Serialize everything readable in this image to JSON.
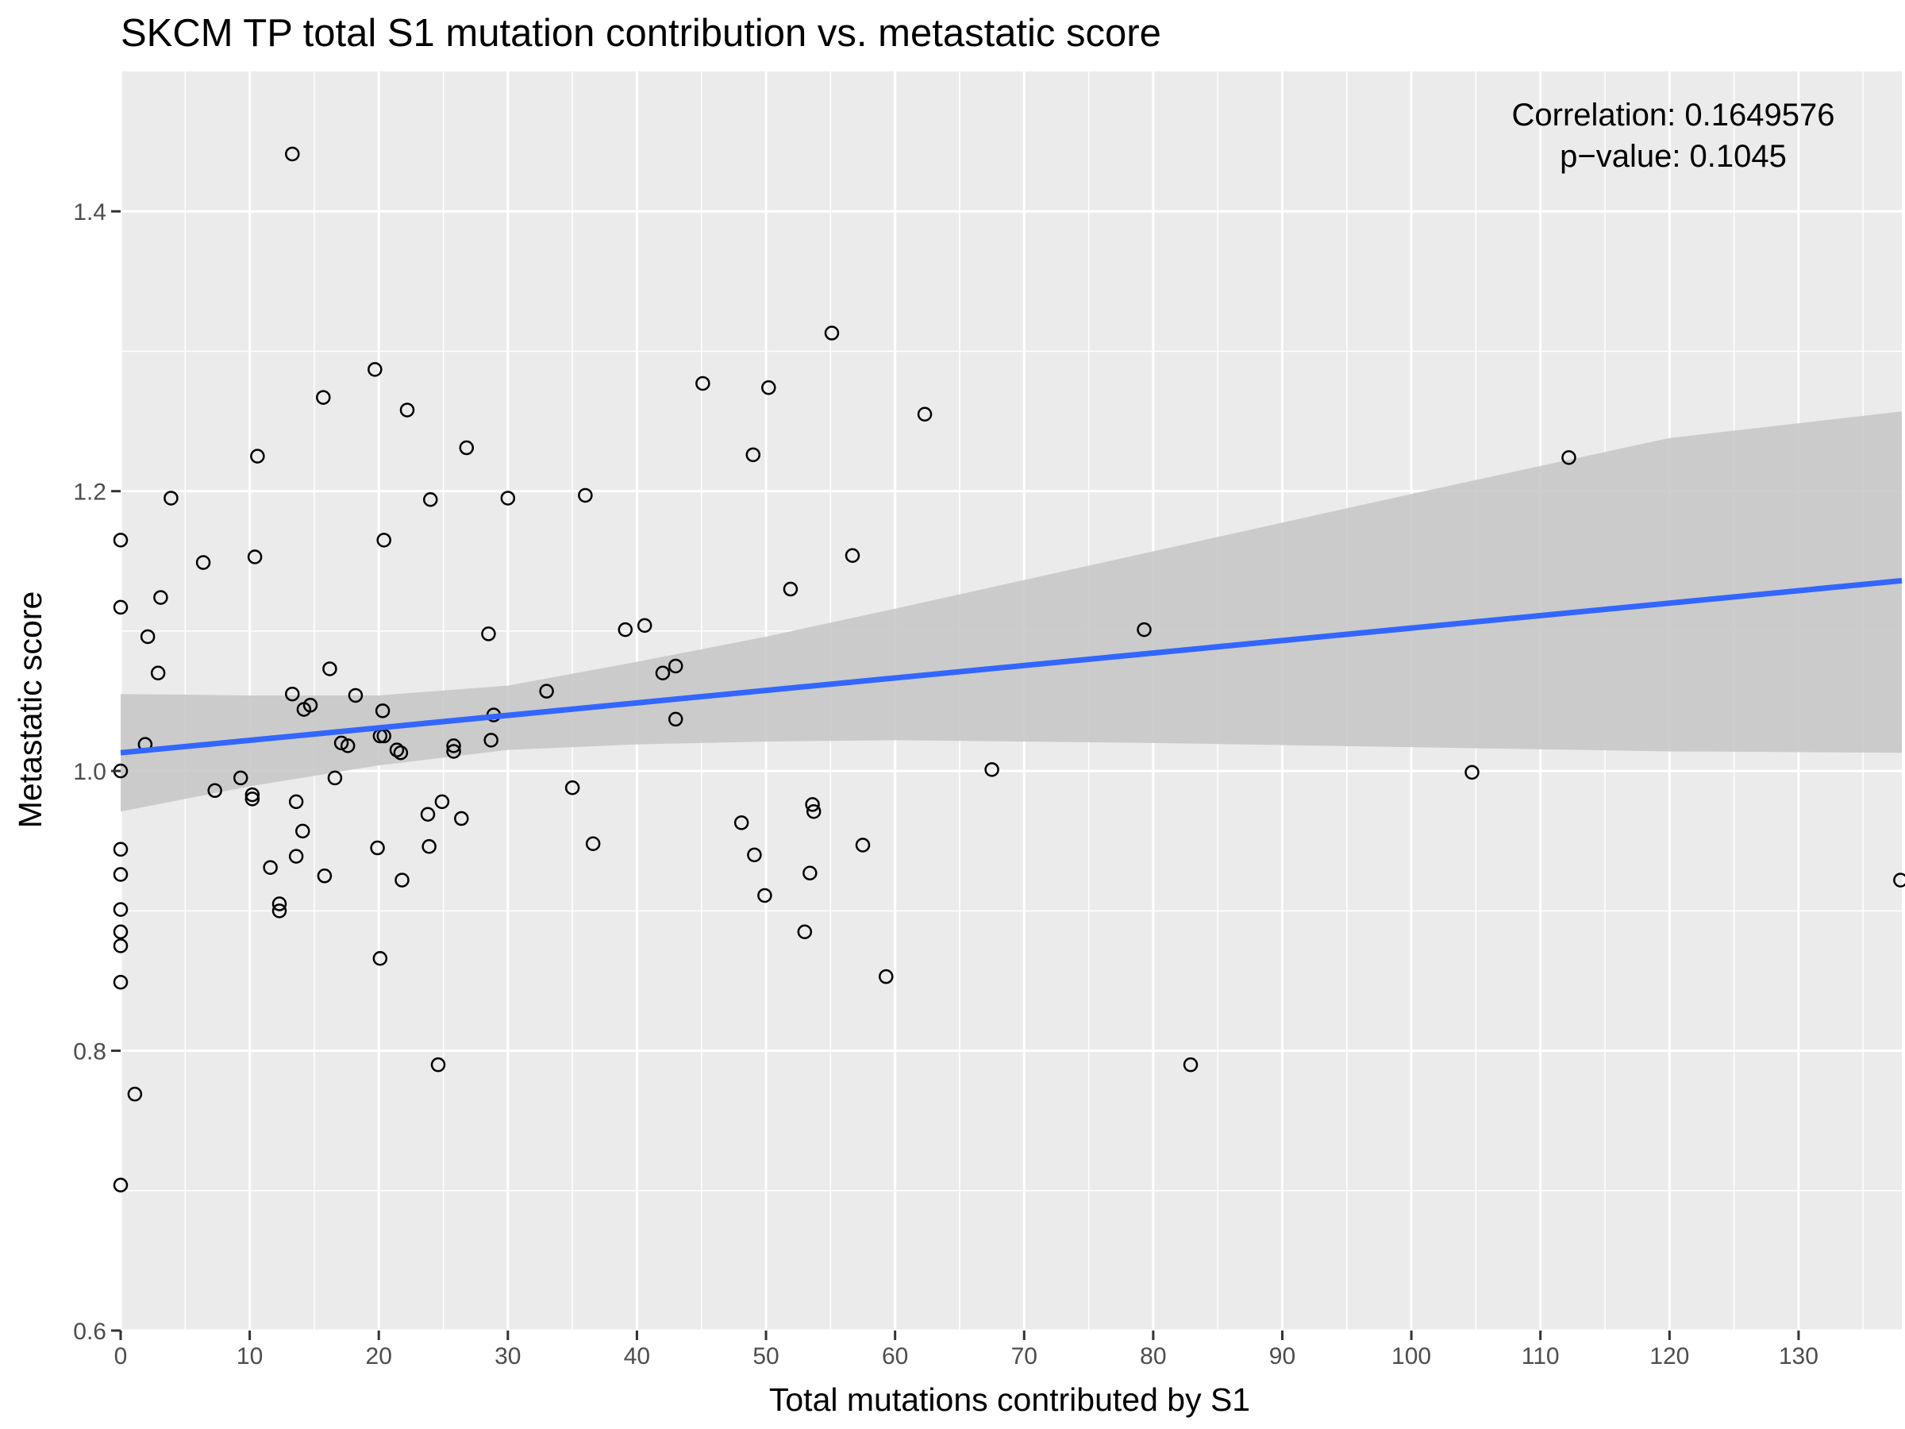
{
  "chart_data": {
    "type": "scatter",
    "title": "SKCM TP total S1 mutation contribution vs. metastatic score",
    "xlabel": "Total mutations contributed by S1",
    "ylabel": "Metastatic score",
    "xlim": [
      0,
      138
    ],
    "ylim": [
      0.6,
      1.5
    ],
    "x_ticks": [
      0,
      10,
      20,
      30,
      40,
      50,
      60,
      70,
      80,
      90,
      100,
      110,
      120,
      130
    ],
    "y_ticks": [
      0.6,
      0.8,
      1.0,
      1.2,
      1.4
    ],
    "y_tick_labels": [
      "0.6",
      "0.8",
      "1.0",
      "1.2",
      "1.4"
    ],
    "grid": true,
    "annotation": {
      "correlation_label": "Correlation: 0.1649576",
      "pvalue_label": "p−value: 0.1045",
      "placement": "top-right"
    },
    "colors": {
      "panel_background": "#ebebeb",
      "grid": "#ffffff",
      "fit_line": "#3366ff",
      "ribbon": "#c8c8c8",
      "point_stroke": "#000000"
    },
    "fit": {
      "type": "linear",
      "x_start": 0,
      "y_start": 1.013,
      "x_end": 138,
      "y_end": 1.136,
      "band": [
        {
          "x": 0,
          "lo": 0.971,
          "hi": 1.055
        },
        {
          "x": 10,
          "lo": 0.989,
          "hi": 1.054
        },
        {
          "x": 20,
          "lo": 1.004,
          "hi": 1.054
        },
        {
          "x": 30,
          "lo": 1.015,
          "hi": 1.061
        },
        {
          "x": 40,
          "lo": 1.019,
          "hi": 1.078
        },
        {
          "x": 50,
          "lo": 1.021,
          "hi": 1.096
        },
        {
          "x": 60,
          "lo": 1.022,
          "hi": 1.116
        },
        {
          "x": 80,
          "lo": 1.02,
          "hi": 1.157
        },
        {
          "x": 100,
          "lo": 1.017,
          "hi": 1.198
        },
        {
          "x": 120,
          "lo": 1.014,
          "hi": 1.238
        },
        {
          "x": 138,
          "lo": 1.013,
          "hi": 1.257
        }
      ]
    },
    "points": [
      {
        "x": 0,
        "y": 1.165
      },
      {
        "x": 0,
        "y": 1.117
      },
      {
        "x": 0,
        "y": 1.0
      },
      {
        "x": 0,
        "y": 0.944
      },
      {
        "x": 0,
        "y": 0.926
      },
      {
        "x": 0,
        "y": 0.901
      },
      {
        "x": 0,
        "y": 0.885
      },
      {
        "x": 0,
        "y": 0.875
      },
      {
        "x": 0,
        "y": 0.849
      },
      {
        "x": 0,
        "y": 0.704
      },
      {
        "x": 1.1,
        "y": 0.769
      },
      {
        "x": 1.9,
        "y": 1.019
      },
      {
        "x": 2.1,
        "y": 1.096
      },
      {
        "x": 2.9,
        "y": 1.07
      },
      {
        "x": 3.1,
        "y": 1.124
      },
      {
        "x": 3.9,
        "y": 1.195
      },
      {
        "x": 6.4,
        "y": 1.149
      },
      {
        "x": 7.3,
        "y": 0.986
      },
      {
        "x": 9.3,
        "y": 0.995
      },
      {
        "x": 10.2,
        "y": 0.983
      },
      {
        "x": 10.2,
        "y": 0.98
      },
      {
        "x": 10.4,
        "y": 1.153
      },
      {
        "x": 10.6,
        "y": 1.225
      },
      {
        "x": 11.6,
        "y": 0.931
      },
      {
        "x": 12.3,
        "y": 0.905
      },
      {
        "x": 12.3,
        "y": 0.9
      },
      {
        "x": 13.3,
        "y": 1.441
      },
      {
        "x": 13.3,
        "y": 1.055
      },
      {
        "x": 13.6,
        "y": 0.978
      },
      {
        "x": 13.6,
        "y": 0.939
      },
      {
        "x": 14.1,
        "y": 0.957
      },
      {
        "x": 14.2,
        "y": 1.044
      },
      {
        "x": 14.7,
        "y": 1.047
      },
      {
        "x": 15.7,
        "y": 1.267
      },
      {
        "x": 15.8,
        "y": 0.925
      },
      {
        "x": 16.2,
        "y": 1.073
      },
      {
        "x": 16.6,
        "y": 0.995
      },
      {
        "x": 17.1,
        "y": 1.02
      },
      {
        "x": 17.6,
        "y": 1.018
      },
      {
        "x": 18.2,
        "y": 1.054
      },
      {
        "x": 19.7,
        "y": 1.287
      },
      {
        "x": 19.9,
        "y": 0.945
      },
      {
        "x": 20.1,
        "y": 0.866
      },
      {
        "x": 20.1,
        "y": 1.025
      },
      {
        "x": 20.3,
        "y": 1.043
      },
      {
        "x": 20.4,
        "y": 1.165
      },
      {
        "x": 20.4,
        "y": 1.025
      },
      {
        "x": 21.4,
        "y": 1.015
      },
      {
        "x": 21.7,
        "y": 1.013
      },
      {
        "x": 21.8,
        "y": 0.922
      },
      {
        "x": 22.2,
        "y": 1.258
      },
      {
        "x": 23.8,
        "y": 0.969
      },
      {
        "x": 23.9,
        "y": 0.946
      },
      {
        "x": 24.0,
        "y": 1.194
      },
      {
        "x": 24.6,
        "y": 0.79
      },
      {
        "x": 24.9,
        "y": 0.978
      },
      {
        "x": 25.8,
        "y": 1.018
      },
      {
        "x": 25.8,
        "y": 1.014
      },
      {
        "x": 26.4,
        "y": 0.966
      },
      {
        "x": 26.8,
        "y": 1.231
      },
      {
        "x": 28.5,
        "y": 1.098
      },
      {
        "x": 28.7,
        "y": 1.022
      },
      {
        "x": 28.9,
        "y": 1.04
      },
      {
        "x": 30.0,
        "y": 1.195
      },
      {
        "x": 33.0,
        "y": 1.057
      },
      {
        "x": 35.0,
        "y": 0.988
      },
      {
        "x": 36.0,
        "y": 1.197
      },
      {
        "x": 36.6,
        "y": 0.948
      },
      {
        "x": 39.1,
        "y": 1.101
      },
      {
        "x": 40.6,
        "y": 1.104
      },
      {
        "x": 42.0,
        "y": 1.07
      },
      {
        "x": 43.0,
        "y": 1.075
      },
      {
        "x": 43.0,
        "y": 1.037
      },
      {
        "x": 45.1,
        "y": 1.277
      },
      {
        "x": 48.1,
        "y": 0.963
      },
      {
        "x": 49.0,
        "y": 1.226
      },
      {
        "x": 49.1,
        "y": 0.94
      },
      {
        "x": 49.9,
        "y": 0.911
      },
      {
        "x": 50.2,
        "y": 1.274
      },
      {
        "x": 51.9,
        "y": 1.13
      },
      {
        "x": 53.0,
        "y": 0.885
      },
      {
        "x": 53.4,
        "y": 0.927
      },
      {
        "x": 53.6,
        "y": 0.976
      },
      {
        "x": 53.7,
        "y": 0.971
      },
      {
        "x": 55.1,
        "y": 1.313
      },
      {
        "x": 56.7,
        "y": 1.154
      },
      {
        "x": 57.5,
        "y": 0.947
      },
      {
        "x": 59.3,
        "y": 0.853
      },
      {
        "x": 62.3,
        "y": 1.255
      },
      {
        "x": 67.5,
        "y": 1.001
      },
      {
        "x": 79.3,
        "y": 1.101
      },
      {
        "x": 82.9,
        "y": 0.79
      },
      {
        "x": 104.7,
        "y": 0.999
      },
      {
        "x": 112.2,
        "y": 1.224
      },
      {
        "x": 137.9,
        "y": 0.922
      }
    ]
  }
}
